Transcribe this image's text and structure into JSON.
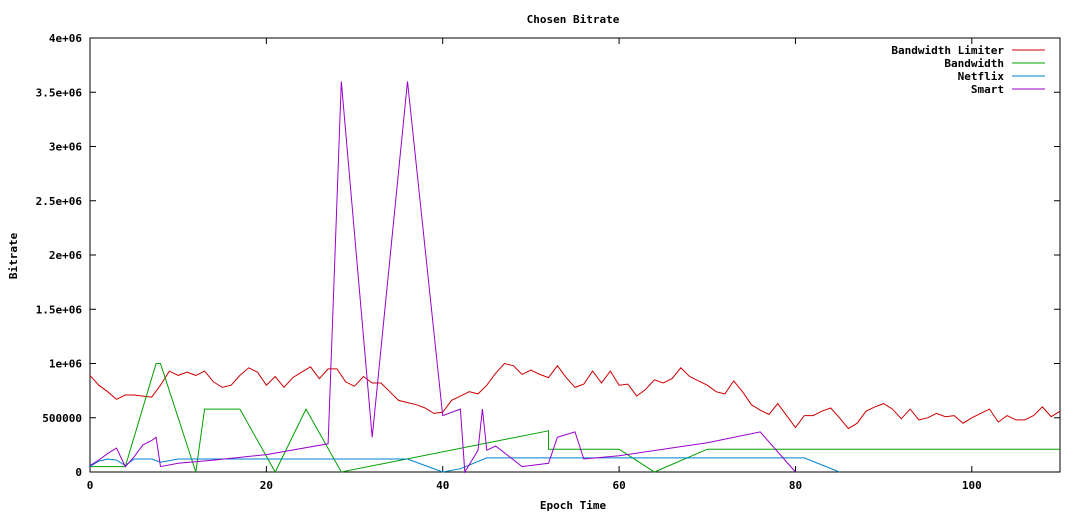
{
  "chart_data": {
    "type": "line",
    "title": "Chosen Bitrate",
    "xlabel": "Epoch Time",
    "ylabel": "Bitrate",
    "xlim": [
      0,
      110
    ],
    "ylim": [
      0,
      4000000
    ],
    "x_ticks": [
      0,
      20,
      40,
      60,
      80,
      100
    ],
    "x_tick_labels": [
      "0",
      "20",
      "40",
      "60",
      "80",
      "100"
    ],
    "y_ticks": [
      0,
      500000,
      1000000,
      1500000,
      2000000,
      2500000,
      3000000,
      3500000,
      4000000
    ],
    "y_tick_labels": [
      "0",
      "500000",
      "1e+06",
      "1.5e+06",
      "2e+06",
      "2.5e+06",
      "3e+06",
      "3.5e+06",
      "4e+06"
    ],
    "grid": false,
    "legend_position": "top-right",
    "series": [
      {
        "name": "Bandwidth Limiter",
        "color": "#cc0000",
        "points": [
          [
            0,
            890000
          ],
          [
            1,
            800000
          ],
          [
            2,
            740000
          ],
          [
            3,
            670000
          ],
          [
            4,
            710000
          ],
          [
            5,
            710000
          ],
          [
            6,
            700000
          ],
          [
            7,
            690000
          ],
          [
            8,
            800000
          ],
          [
            9,
            930000
          ],
          [
            10,
            890000
          ],
          [
            11,
            920000
          ],
          [
            12,
            890000
          ],
          [
            13,
            930000
          ],
          [
            14,
            830000
          ],
          [
            15,
            780000
          ],
          [
            16,
            800000
          ],
          [
            17,
            890000
          ],
          [
            18,
            960000
          ],
          [
            19,
            920000
          ],
          [
            20,
            800000
          ],
          [
            21,
            880000
          ],
          [
            22,
            780000
          ],
          [
            23,
            870000
          ],
          [
            24,
            920000
          ],
          [
            25,
            970000
          ],
          [
            26,
            860000
          ],
          [
            27,
            950000
          ],
          [
            28,
            950000
          ],
          [
            29,
            830000
          ],
          [
            30,
            790000
          ],
          [
            31,
            880000
          ],
          [
            32,
            820000
          ],
          [
            33,
            820000
          ],
          [
            34,
            740000
          ],
          [
            35,
            660000
          ],
          [
            36,
            640000
          ],
          [
            37,
            620000
          ],
          [
            38,
            590000
          ],
          [
            39,
            540000
          ],
          [
            40,
            550000
          ],
          [
            41,
            660000
          ],
          [
            42,
            700000
          ],
          [
            43,
            740000
          ],
          [
            44,
            720000
          ],
          [
            45,
            800000
          ],
          [
            46,
            910000
          ],
          [
            47,
            1000000
          ],
          [
            48,
            980000
          ],
          [
            49,
            900000
          ],
          [
            50,
            940000
          ],
          [
            51,
            900000
          ],
          [
            52,
            870000
          ],
          [
            53,
            980000
          ],
          [
            54,
            870000
          ],
          [
            55,
            780000
          ],
          [
            56,
            810000
          ],
          [
            57,
            930000
          ],
          [
            58,
            820000
          ],
          [
            59,
            930000
          ],
          [
            60,
            800000
          ],
          [
            61,
            810000
          ],
          [
            62,
            700000
          ],
          [
            63,
            760000
          ],
          [
            64,
            850000
          ],
          [
            65,
            820000
          ],
          [
            66,
            860000
          ],
          [
            67,
            960000
          ],
          [
            68,
            880000
          ],
          [
            69,
            840000
          ],
          [
            70,
            800000
          ],
          [
            71,
            740000
          ],
          [
            72,
            720000
          ],
          [
            73,
            840000
          ],
          [
            74,
            740000
          ],
          [
            75,
            620000
          ],
          [
            76,
            570000
          ],
          [
            77,
            530000
          ],
          [
            78,
            630000
          ],
          [
            79,
            520000
          ],
          [
            80,
            410000
          ],
          [
            81,
            520000
          ],
          [
            82,
            520000
          ],
          [
            83,
            560000
          ],
          [
            84,
            590000
          ],
          [
            85,
            500000
          ],
          [
            86,
            400000
          ],
          [
            87,
            450000
          ],
          [
            88,
            560000
          ],
          [
            89,
            600000
          ],
          [
            90,
            630000
          ],
          [
            91,
            580000
          ],
          [
            92,
            490000
          ],
          [
            93,
            580000
          ],
          [
            94,
            480000
          ],
          [
            95,
            500000
          ],
          [
            96,
            540000
          ],
          [
            97,
            510000
          ],
          [
            98,
            520000
          ],
          [
            99,
            450000
          ],
          [
            100,
            500000
          ],
          [
            101,
            540000
          ],
          [
            102,
            580000
          ],
          [
            103,
            460000
          ],
          [
            104,
            520000
          ],
          [
            105,
            480000
          ],
          [
            106,
            480000
          ],
          [
            107,
            520000
          ],
          [
            108,
            600000
          ],
          [
            109,
            510000
          ],
          [
            110,
            560000
          ]
        ]
      },
      {
        "name": "Bandwidth",
        "color": "#00a000",
        "points": [
          [
            0,
            50000
          ],
          [
            4,
            50000
          ],
          [
            7.5,
            1000000
          ],
          [
            8,
            1000000
          ],
          [
            12,
            0
          ],
          [
            13,
            580000
          ],
          [
            17,
            580000
          ],
          [
            21,
            0
          ],
          [
            24.5,
            580000
          ],
          [
            28.5,
            0
          ],
          [
            52,
            380000
          ],
          [
            52,
            210000
          ],
          [
            60,
            210000
          ],
          [
            64,
            0
          ],
          [
            70,
            210000
          ],
          [
            110,
            210000
          ]
        ]
      },
      {
        "name": "Netflix",
        "color": "#0080cc",
        "points": [
          [
            0,
            50000
          ],
          [
            1,
            100000
          ],
          [
            2,
            120000
          ],
          [
            3,
            110000
          ],
          [
            4,
            60000
          ],
          [
            5,
            120000
          ],
          [
            6,
            120000
          ],
          [
            7,
            120000
          ],
          [
            8,
            90000
          ],
          [
            10,
            120000
          ],
          [
            20,
            120000
          ],
          [
            30,
            120000
          ],
          [
            36,
            120000
          ],
          [
            38,
            60000
          ],
          [
            40,
            0
          ],
          [
            42,
            30000
          ],
          [
            45,
            130000
          ],
          [
            50,
            130000
          ],
          [
            60,
            130000
          ],
          [
            70,
            130000
          ],
          [
            81,
            130000
          ],
          [
            85,
            0
          ]
        ]
      },
      {
        "name": "Smart",
        "color": "#9900cc",
        "points": [
          [
            0,
            60000
          ],
          [
            1,
            110000
          ],
          [
            2,
            170000
          ],
          [
            3,
            220000
          ],
          [
            4,
            50000
          ],
          [
            5,
            140000
          ],
          [
            6,
            250000
          ],
          [
            7,
            290000
          ],
          [
            7.5,
            320000
          ],
          [
            8,
            50000
          ],
          [
            10,
            80000
          ],
          [
            14,
            110000
          ],
          [
            20,
            160000
          ],
          [
            27,
            260000
          ],
          [
            28.5,
            3600000
          ],
          [
            32,
            320000
          ],
          [
            36,
            3600000
          ],
          [
            40,
            520000
          ],
          [
            42,
            580000
          ],
          [
            42.5,
            0
          ],
          [
            44,
            200000
          ],
          [
            44.5,
            580000
          ],
          [
            45,
            200000
          ],
          [
            46,
            240000
          ],
          [
            49,
            50000
          ],
          [
            52,
            80000
          ],
          [
            53,
            320000
          ],
          [
            55,
            370000
          ],
          [
            56,
            120000
          ],
          [
            60,
            150000
          ],
          [
            70,
            270000
          ],
          [
            76,
            370000
          ],
          [
            80,
            0
          ]
        ]
      }
    ]
  }
}
